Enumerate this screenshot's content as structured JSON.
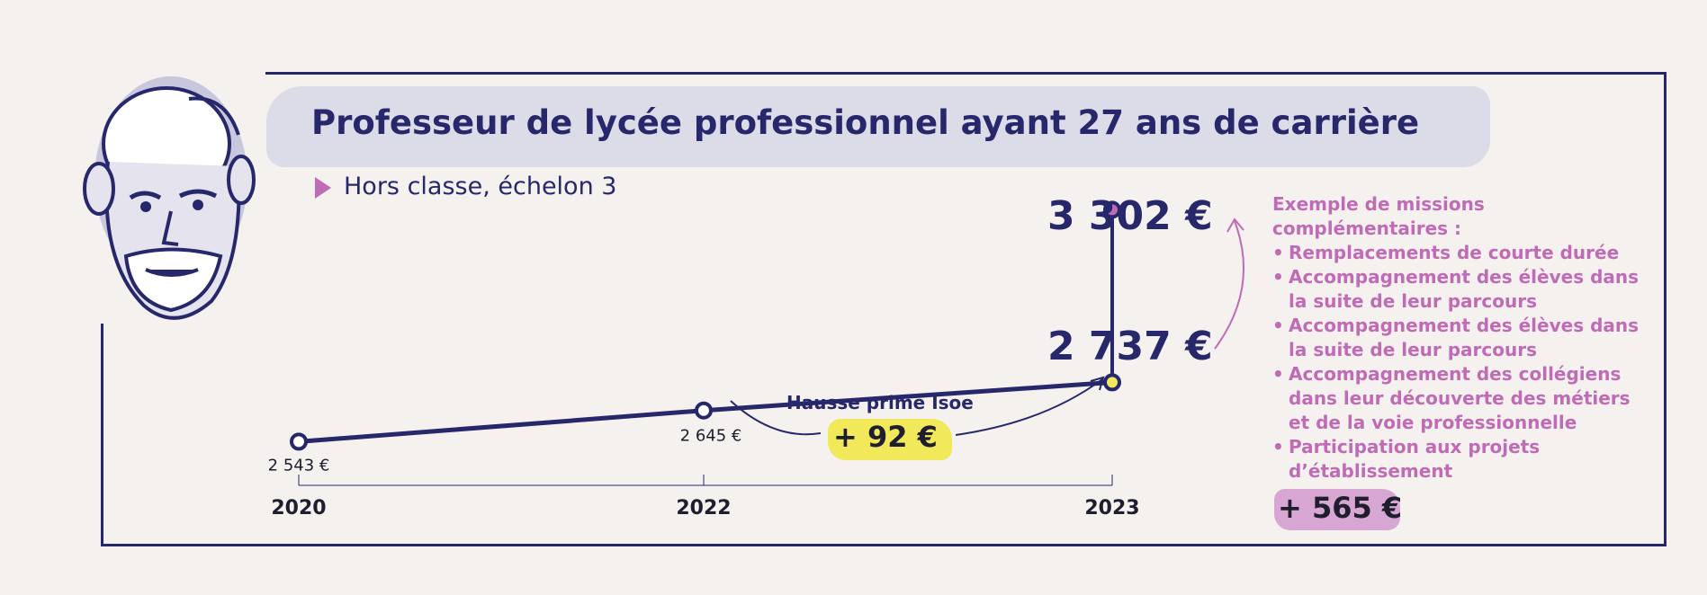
{
  "title": "Professeur de lycée professionnel ayant 27 ans de carrière",
  "subtitle": "Hors classe, échelon 3",
  "annotations": {
    "hausse_label": "Hausse prime Isoe",
    "hausse_value": "+ 92 €",
    "final_total": "3 302 €",
    "final_base": "2 737 €",
    "missions_value": "+ 565 €"
  },
  "missions": {
    "heading": "Exemple de missions complémentaires :",
    "items": [
      "Remplacements de courte durée",
      "Accompagnement des élèves dans la suite de leur parcours",
      "Accompagnement des élèves dans la suite de leur parcours",
      "Accompagnement des collégiens dans leur découverte des métiers et de la voie professionnelle",
      "Participation aux projets d’établissement"
    ]
  },
  "colors": {
    "navy": "#27286b",
    "pink": "#c06bb5",
    "yellow": "#f1e95a",
    "band": "#dcdbe8"
  },
  "chart_data": {
    "type": "line",
    "categories": [
      "2020",
      "2022",
      "2023"
    ],
    "values": [
      2543,
      2645,
      2737
    ],
    "value_labels": [
      "2 543 €",
      "2 645 €",
      ""
    ],
    "extra_point": {
      "category": "2023",
      "value": 3302
    },
    "xlabel": "",
    "ylabel": "",
    "ylim": [
      2400,
      3400
    ],
    "grid": false,
    "legend": "none"
  }
}
